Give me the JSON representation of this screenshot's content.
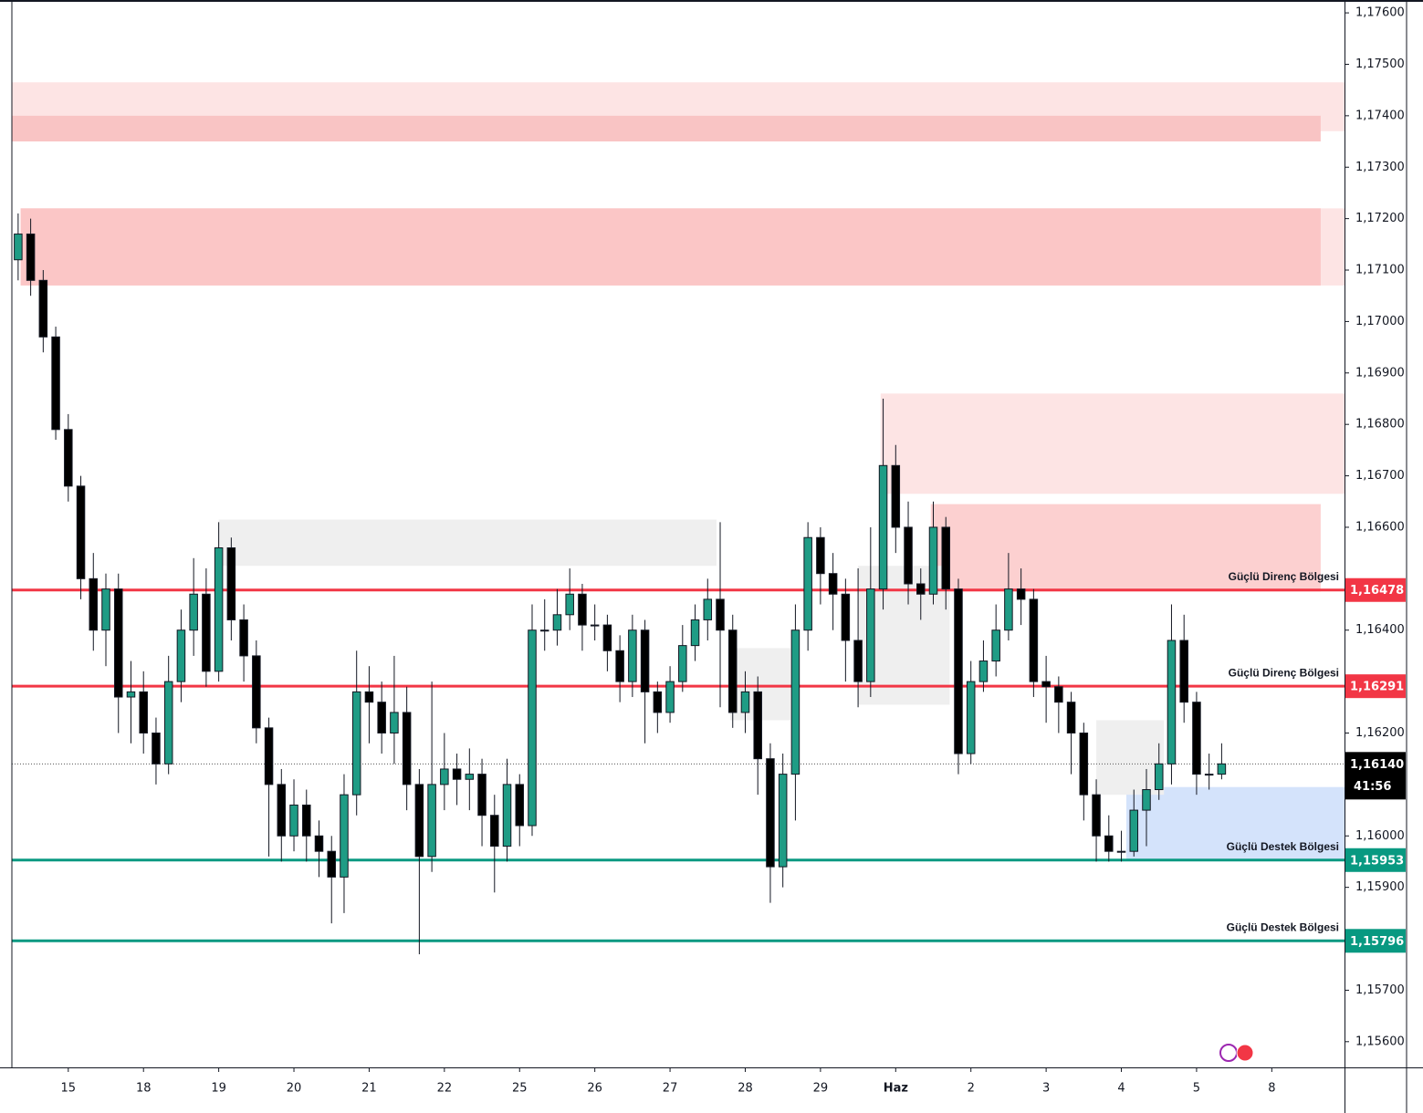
{
  "chart_data": {
    "type": "candlestick",
    "x": [
      -4,
      -3,
      -2,
      -1,
      0,
      1,
      2,
      3,
      4,
      5,
      6,
      7,
      8,
      9,
      10,
      11,
      12,
      13,
      14,
      15,
      16,
      17,
      18,
      19,
      20,
      21,
      22,
      23,
      24,
      25,
      26,
      27,
      28,
      29,
      30,
      31,
      32,
      33,
      34,
      35,
      36,
      37,
      38,
      39,
      40,
      41,
      42,
      43,
      44,
      45,
      46,
      47,
      48,
      49,
      50,
      51,
      52,
      53,
      54,
      55,
      56,
      57,
      58,
      59,
      60,
      61,
      62,
      63,
      64,
      65,
      66,
      67,
      68,
      69,
      70,
      71,
      72,
      73,
      74,
      75,
      76,
      77,
      78,
      79,
      80,
      81,
      82,
      83,
      84,
      85,
      86,
      87,
      88,
      89,
      90,
      91,
      92
    ],
    "open": [
      1.1712,
      1.1717,
      1.1708,
      1.1697,
      1.1679,
      1.1668,
      1.165,
      1.164,
      1.1648,
      1.1627,
      1.1628,
      1.162,
      1.1614,
      1.163,
      1.164,
      1.1647,
      1.1632,
      1.1656,
      1.1642,
      1.1635,
      1.1621,
      1.161,
      1.16,
      1.1606,
      1.16,
      1.1597,
      1.1592,
      1.1608,
      1.1628,
      1.1626,
      1.162,
      1.1624,
      1.161,
      1.1596,
      1.161,
      1.1613,
      1.1611,
      1.1612,
      1.1604,
      1.1598,
      1.161,
      1.1602,
      1.164,
      1.164,
      1.1643,
      1.1647,
      1.1641,
      1.1641,
      1.1636,
      1.163,
      1.164,
      1.1628,
      1.1624,
      1.163,
      1.1637,
      1.1642,
      1.1646,
      1.164,
      1.1624,
      1.1628,
      1.1615,
      1.1594,
      1.1612,
      1.164,
      1.1658,
      1.1651,
      1.1647,
      1.1638,
      1.163,
      1.1648,
      1.1672,
      1.166,
      1.1649,
      1.1647,
      1.166,
      1.1648,
      1.1616,
      1.163,
      1.1634,
      1.164,
      1.1648,
      1.1646,
      1.163,
      1.1629,
      1.1626,
      1.162,
      1.1608,
      1.16,
      1.1597,
      1.1597,
      1.1605,
      1.1609,
      1.1614,
      1.1638,
      1.1626,
      1.1612,
      1.1612
    ],
    "high": [
      1.1721,
      1.172,
      1.171,
      1.1699,
      1.1682,
      1.167,
      1.1655,
      1.1651,
      1.1651,
      1.1634,
      1.1632,
      1.1623,
      1.1635,
      1.1644,
      1.1654,
      1.1652,
      1.1661,
      1.1658,
      1.1645,
      1.1638,
      1.1623,
      1.1613,
      1.1611,
      1.1609,
      1.1603,
      1.16,
      1.1612,
      1.1636,
      1.1633,
      1.163,
      1.1635,
      1.1629,
      1.1613,
      1.163,
      1.162,
      1.1616,
      1.1617,
      1.1615,
      1.1608,
      1.1615,
      1.1612,
      1.1645,
      1.1646,
      1.1648,
      1.1652,
      1.1649,
      1.1645,
      1.1643,
      1.1639,
      1.1643,
      1.1642,
      1.163,
      1.1633,
      1.1641,
      1.1645,
      1.165,
      1.1661,
      1.1643,
      1.1632,
      1.1631,
      1.1618,
      1.1616,
      1.1645,
      1.1661,
      1.166,
      1.1655,
      1.165,
      1.1652,
      1.166,
      1.1685,
      1.1676,
      1.1665,
      1.1652,
      1.1665,
      1.1662,
      1.165,
      1.1634,
      1.1638,
      1.1645,
      1.1655,
      1.1652,
      1.1648,
      1.1635,
      1.1631,
      1.1628,
      1.1622,
      1.1611,
      1.1604,
      1.1601,
      1.1609,
      1.1613,
      1.1618,
      1.1645,
      1.1643,
      1.1628,
      1.1616,
      1.1618
    ],
    "low": [
      1.1708,
      1.1705,
      1.1694,
      1.1677,
      1.1665,
      1.1646,
      1.1636,
      1.1633,
      1.162,
      1.1618,
      1.1616,
      1.161,
      1.1612,
      1.1626,
      1.1635,
      1.1629,
      1.163,
      1.1638,
      1.163,
      1.1618,
      1.1596,
      1.1595,
      1.1597,
      1.1595,
      1.1592,
      1.1583,
      1.1585,
      1.1604,
      1.1618,
      1.1616,
      1.1614,
      1.1605,
      1.1577,
      1.1593,
      1.1605,
      1.1606,
      1.1605,
      1.1598,
      1.1589,
      1.1595,
      1.1598,
      1.16,
      1.1636,
      1.1637,
      1.164,
      1.1636,
      1.1638,
      1.1632,
      1.1626,
      1.1627,
      1.1618,
      1.162,
      1.1622,
      1.1628,
      1.1634,
      1.1638,
      1.1625,
      1.1621,
      1.162,
      1.1608,
      1.1587,
      1.159,
      1.1603,
      1.1636,
      1.1645,
      1.164,
      1.163,
      1.1625,
      1.1627,
      1.1644,
      1.1655,
      1.1645,
      1.1642,
      1.1645,
      1.1644,
      1.1612,
      1.1614,
      1.1628,
      1.1631,
      1.1638,
      1.1641,
      1.1627,
      1.1622,
      1.162,
      1.1612,
      1.1603,
      1.1595,
      1.1595,
      1.1595,
      1.1596,
      1.1598,
      1.1607,
      1.161,
      1.1622,
      1.1608,
      1.1609,
      1.1611
    ],
    "close": [
      1.1717,
      1.1708,
      1.1697,
      1.1679,
      1.1668,
      1.165,
      1.164,
      1.1648,
      1.1627,
      1.1628,
      1.162,
      1.1614,
      1.163,
      1.164,
      1.1647,
      1.1632,
      1.1656,
      1.1642,
      1.1635,
      1.1621,
      1.161,
      1.16,
      1.1606,
      1.16,
      1.1597,
      1.1592,
      1.1608,
      1.1628,
      1.1626,
      1.162,
      1.1624,
      1.161,
      1.1596,
      1.161,
      1.1613,
      1.1611,
      1.1612,
      1.1604,
      1.1598,
      1.161,
      1.1602,
      1.164,
      1.164,
      1.1643,
      1.1647,
      1.1641,
      1.1641,
      1.1636,
      1.163,
      1.164,
      1.1628,
      1.1624,
      1.163,
      1.1637,
      1.1642,
      1.1646,
      1.164,
      1.1624,
      1.1628,
      1.1615,
      1.1594,
      1.1612,
      1.164,
      1.1658,
      1.1651,
      1.1647,
      1.1638,
      1.163,
      1.1648,
      1.1672,
      1.166,
      1.1649,
      1.1647,
      1.166,
      1.1648,
      1.1616,
      1.163,
      1.1634,
      1.164,
      1.1648,
      1.1646,
      1.163,
      1.1629,
      1.1626,
      1.162,
      1.1608,
      1.16,
      1.1597,
      1.1597,
      1.1605,
      1.1609,
      1.1614,
      1.1638,
      1.1626,
      1.1612,
      1.1612,
      1.1614
    ],
    "up_color": "#1f9c85",
    "down_color": "#000000",
    "xlim": [
      -4.5,
      101.8
    ],
    "xticks": [
      {
        "value": 0,
        "label": "15"
      },
      {
        "value": 6,
        "label": "18"
      },
      {
        "value": 12,
        "label": "19"
      },
      {
        "value": 18,
        "label": "20"
      },
      {
        "value": 24,
        "label": "21"
      },
      {
        "value": 30,
        "label": "22"
      },
      {
        "value": 36,
        "label": "25"
      },
      {
        "value": 42,
        "label": "26"
      },
      {
        "value": 48,
        "label": "27"
      },
      {
        "value": 54,
        "label": "28"
      },
      {
        "value": 60,
        "label": "29"
      },
      {
        "value": 66,
        "label": "Haz"
      },
      {
        "value": 72,
        "label": "2"
      },
      {
        "value": 78,
        "label": "3"
      },
      {
        "value": 84,
        "label": "4"
      },
      {
        "value": 90,
        "label": "5"
      },
      {
        "value": 96,
        "label": "8"
      }
    ],
    "ylim": [
      1.1555,
      1.17625
    ],
    "yticks": [
      {
        "value": 1.176,
        "label": "1,17600"
      },
      {
        "value": 1.175,
        "label": "1,17500"
      },
      {
        "value": 1.174,
        "label": "1,17400"
      },
      {
        "value": 1.173,
        "label": "1,17300"
      },
      {
        "value": 1.172,
        "label": "1,17200"
      },
      {
        "value": 1.171,
        "label": "1,17100"
      },
      {
        "value": 1.17,
        "label": "1,17000"
      },
      {
        "value": 1.169,
        "label": "1,16900"
      },
      {
        "value": 1.168,
        "label": "1,16800"
      },
      {
        "value": 1.167,
        "label": "1,16700"
      },
      {
        "value": 1.166,
        "label": "1,16600"
      },
      {
        "value": 1.164,
        "label": "1,16400"
      },
      {
        "value": 1.162,
        "label": "1,16200"
      },
      {
        "value": 1.16,
        "label": "1,16000"
      },
      {
        "value": 1.159,
        "label": "1,15900"
      },
      {
        "value": 1.157,
        "label": "1,15700"
      },
      {
        "value": 1.156,
        "label": "1,15600"
      }
    ],
    "zones": [
      {
        "x": [
          -4.5,
          101.8
        ],
        "y": [
          1.1737,
          1.17465
        ],
        "color": "#fde4e4"
      },
      {
        "x": [
          -4.5,
          99.9
        ],
        "y": [
          1.1735,
          1.174
        ],
        "color": "#f9c4c4"
      },
      {
        "x": [
          -3.8,
          101.8
        ],
        "y": [
          1.1707,
          1.1722
        ],
        "color": "#fde4e4"
      },
      {
        "x": [
          -3.8,
          99.9
        ],
        "y": [
          1.1707,
          1.1722
        ],
        "color": "#fbc6c6"
      },
      {
        "x": [
          64.8,
          101.8
        ],
        "y": [
          1.16665,
          1.1686
        ],
        "color": "#fde4e4"
      },
      {
        "x": [
          68.8,
          99.9
        ],
        "y": [
          1.16475,
          1.16645
        ],
        "color": "#fcd0d0"
      },
      {
        "x": [
          84.4,
          101.8
        ],
        "y": [
          1.15953,
          1.16095
        ],
        "color": "#d4e3fb"
      },
      {
        "x": [
          12.0,
          51.7
        ],
        "y": [
          1.16525,
          1.16615
        ],
        "color": "#efefef"
      },
      {
        "x": [
          52.8,
          57.6
        ],
        "y": [
          1.16225,
          1.16365
        ],
        "color": "#efefef"
      },
      {
        "x": [
          63.0,
          70.3
        ],
        "y": [
          1.16255,
          1.16525
        ],
        "color": "#efefef"
      },
      {
        "x": [
          82.0,
          87.4
        ],
        "y": [
          1.1608,
          1.16225
        ],
        "color": "#efefef"
      }
    ],
    "levels": [
      {
        "value": 1.16478,
        "label": "1,16478",
        "text": "Güçlü Direnç Bölgesi",
        "color": "#f23645"
      },
      {
        "value": 1.16291,
        "label": "1,16291",
        "text": "Güçlü Direnç Bölgesi",
        "color": "#f23645"
      },
      {
        "value": 1.15953,
        "label": "1,15953",
        "text": "Güçlü Destek Bölgesi",
        "color": "#089981"
      },
      {
        "value": 1.15796,
        "label": "1,15796",
        "text": "Güçlü Destek Bölgesi",
        "color": "#089981"
      }
    ],
    "last_price": {
      "value": 1.1614,
      "label": "1,16140",
      "countdown": "41:56"
    }
  }
}
